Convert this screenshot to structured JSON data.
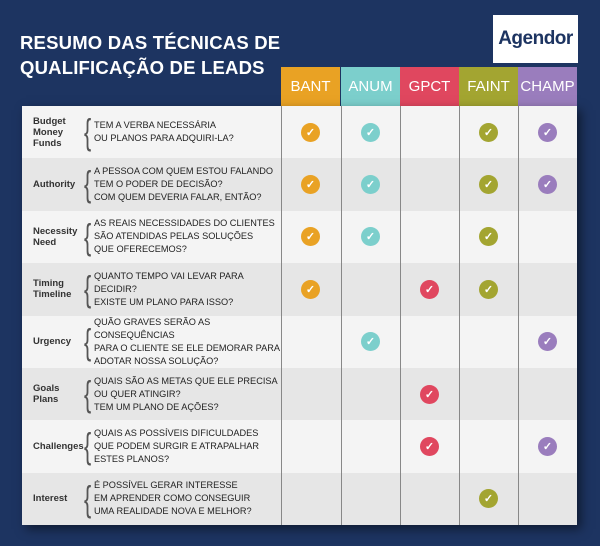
{
  "title_line1": "RESUMO DAS TÉCNICAS DE",
  "title_line2": "QUALIFICAÇÃO DE LEADS",
  "logo": "Agendor",
  "columns": [
    {
      "label": "BANT",
      "color": "#e9a224"
    },
    {
      "label": "ANUM",
      "color": "#7ccfcc"
    },
    {
      "label": "GPCT",
      "color": "#e0475f"
    },
    {
      "label": "FAINT",
      "color": "#a3a531"
    },
    {
      "label": "CHAMP",
      "color": "#9a7dbd"
    }
  ],
  "check_icon": "check-circle-icon",
  "rows": [
    {
      "label": "Budget\nMoney\nFunds",
      "question": "TEM A VERBA NECESSÁRIA\nOU PLANOS PARA ADQUIRI-LA?",
      "checks": [
        true,
        true,
        false,
        true,
        true
      ]
    },
    {
      "label": "Authority",
      "question": "A PESSOA COM QUEM ESTOU FALANDO\nTEM O PODER DE DECISÃO?\nCOM QUEM DEVERIA FALAR, ENTÃO?",
      "checks": [
        true,
        true,
        false,
        true,
        true
      ]
    },
    {
      "label": "Necessity\nNeed",
      "question": "AS REAIS NECESSIDADES DO CLIENTES\nSÃO ATENDIDAS PELAS SOLUÇÕES\nQUE OFERECEMOS?",
      "checks": [
        true,
        true,
        false,
        true,
        false
      ]
    },
    {
      "label": "Timing\nTimeline",
      "question": "QUANTO TEMPO VAI LEVAR PARA DECIDIR?\nEXISTE UM PLANO PARA ISSO?",
      "checks": [
        true,
        false,
        true,
        true,
        false
      ]
    },
    {
      "label": "Urgency",
      "question": "QUÃO GRAVES SERÃO AS CONSEQUÊNCIAS\nPARA O CLIENTE SE ELE DEMORAR PARA\nADOTAR NOSSA SOLUÇÃO?",
      "checks": [
        false,
        true,
        false,
        false,
        true
      ]
    },
    {
      "label": "Goals\nPlans",
      "question": "QUAIS SÃO AS METAS QUE ELE PRECISA\nOU QUER ATINGIR?\n TEM UM PLANO DE AÇÕES?",
      "checks": [
        false,
        false,
        true,
        false,
        false
      ]
    },
    {
      "label": "Challenges",
      "question": "QUAIS AS POSSÍVEIS DIFICULDADES\nQUE PODEM SURGIR E ATRAPALHAR\nESTES PLANOS?",
      "checks": [
        false,
        false,
        true,
        false,
        true
      ]
    },
    {
      "label": "Interest",
      "question": "É POSSÍVEL GERAR INTERESSE\nEM APRENDER COMO CONSEGUIR\nUMA REALIDADE NOVA E MELHOR?",
      "checks": [
        false,
        false,
        false,
        true,
        false
      ]
    }
  ]
}
